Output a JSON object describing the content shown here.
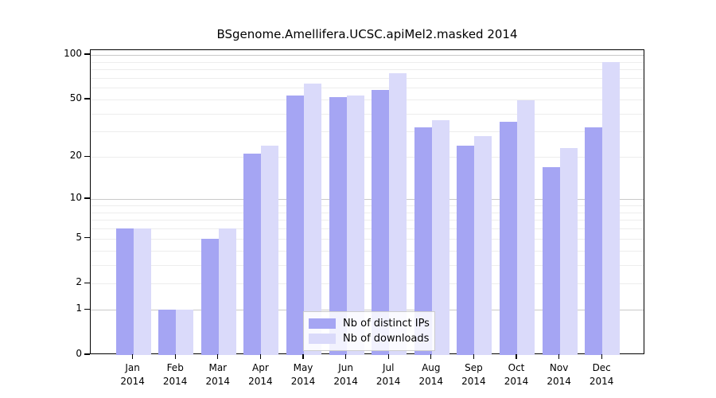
{
  "title": "BSgenome.Amellifera.UCSC.apiMel2.masked 2014",
  "chart_data": {
    "type": "bar",
    "title": "BSgenome.Amellifera.UCSC.apiMel2.masked 2014",
    "categories": [
      "Jan",
      "Feb",
      "Mar",
      "Apr",
      "May",
      "Jun",
      "Jul",
      "Aug",
      "Sep",
      "Oct",
      "Nov",
      "Dec"
    ],
    "x_year_label": "2014",
    "series": [
      {
        "name": "Nb of distinct IPs",
        "color": "#a5a5f3",
        "values": [
          6,
          1,
          5,
          21,
          53,
          52,
          58,
          32,
          24,
          35,
          17,
          32
        ]
      },
      {
        "name": "Nb of downloads",
        "color": "#dadafa",
        "values": [
          6,
          1,
          6,
          24,
          64,
          53,
          75,
          36,
          28,
          49,
          23,
          89
        ]
      }
    ],
    "y_axis": {
      "scale": "log1p",
      "range": [
        0,
        100
      ],
      "ticks": [
        0,
        1,
        2,
        5,
        10,
        20,
        50,
        100
      ],
      "major_gridlines": [
        1,
        10,
        100
      ],
      "minor_gridlines": [
        2,
        3,
        4,
        5,
        6,
        7,
        8,
        9,
        20,
        30,
        40,
        50,
        60,
        70,
        80,
        90
      ]
    },
    "legend": {
      "position": "bottom-center",
      "entries": [
        "Nb of distinct IPs",
        "Nb of downloads"
      ]
    },
    "grid": true
  }
}
